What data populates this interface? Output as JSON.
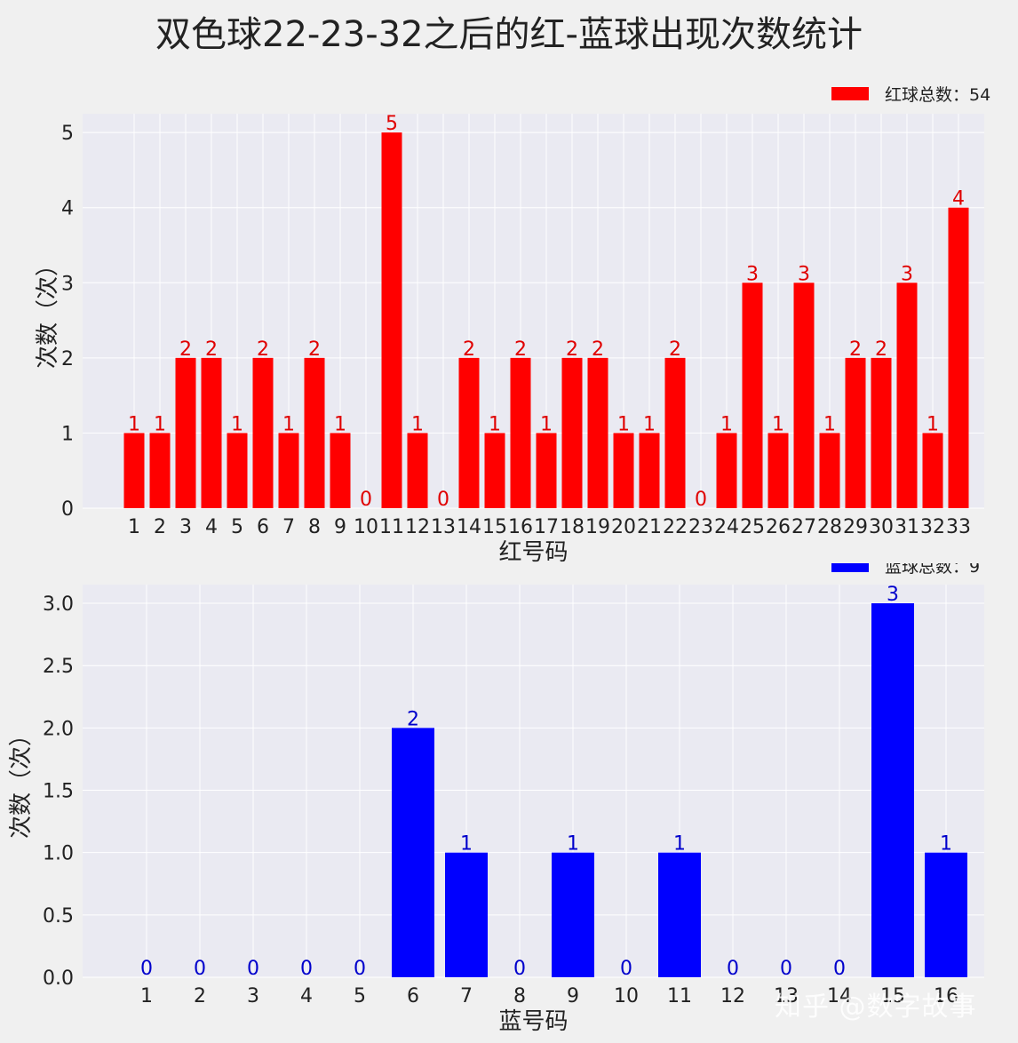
{
  "title": "双色球22-23-32之后的红-蓝球出现次数统计",
  "watermark": "知乎 @数字故事",
  "chart_data": [
    {
      "type": "bar",
      "color": "#ff0000",
      "label_color": "#e00000",
      "legend": "红球总数：54",
      "legend_position": "top-right",
      "xlabel": "红号码",
      "ylabel": "次数（次）",
      "ylim": [
        0,
        5.25
      ],
      "yticks": [
        0,
        1,
        2,
        3,
        4,
        5
      ],
      "ytick_labels": [
        "0",
        "1",
        "2",
        "3",
        "4",
        "5"
      ],
      "grid": true,
      "categories": [
        "1",
        "2",
        "3",
        "4",
        "5",
        "6",
        "7",
        "8",
        "9",
        "10",
        "11",
        "12",
        "13",
        "14",
        "15",
        "16",
        "17",
        "18",
        "19",
        "20",
        "21",
        "22",
        "23",
        "24",
        "25",
        "26",
        "27",
        "28",
        "29",
        "30",
        "31",
        "32",
        "33"
      ],
      "values": [
        1,
        1,
        2,
        2,
        1,
        2,
        1,
        2,
        1,
        0,
        5,
        1,
        0,
        2,
        1,
        2,
        1,
        2,
        2,
        1,
        1,
        2,
        0,
        1,
        3,
        1,
        3,
        1,
        2,
        2,
        3,
        1,
        4
      ]
    },
    {
      "type": "bar",
      "color": "#0000ff",
      "label_color": "#0000cc",
      "legend": "蓝球总数：9",
      "legend_position": "top-right",
      "xlabel": "蓝号码",
      "ylabel": "次数（次）",
      "ylim": [
        0,
        3.15
      ],
      "yticks": [
        0,
        0.5,
        1,
        1.5,
        2,
        2.5,
        3
      ],
      "ytick_labels": [
        "0.0",
        "0.5",
        "1.0",
        "1.5",
        "2.0",
        "2.5",
        "3.0"
      ],
      "grid": true,
      "categories": [
        "1",
        "2",
        "3",
        "4",
        "5",
        "6",
        "7",
        "8",
        "9",
        "10",
        "11",
        "12",
        "13",
        "14",
        "15",
        "16"
      ],
      "values": [
        0,
        0,
        0,
        0,
        0,
        2,
        1,
        0,
        1,
        0,
        1,
        0,
        0,
        0,
        3,
        1
      ]
    }
  ]
}
